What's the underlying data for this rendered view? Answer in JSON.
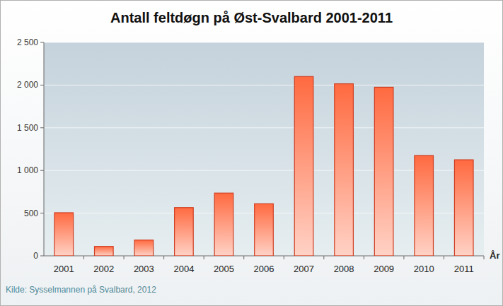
{
  "chart_data": {
    "type": "bar",
    "title": "Antall feltdøgn på Øst-Svalbard 2001-2011",
    "x_label": "År",
    "source": "Kilde: Sysselmannen på Svalbard, 2012",
    "categories": [
      "2001",
      "2002",
      "2003",
      "2004",
      "2005",
      "2006",
      "2007",
      "2008",
      "2009",
      "2010",
      "2011"
    ],
    "values": [
      505,
      110,
      185,
      565,
      735,
      610,
      2100,
      2015,
      1975,
      1175,
      1125
    ],
    "color": "#ff6a40",
    "ylim": [
      0,
      2500
    ],
    "yticks": [
      0,
      500,
      {
        "value": 1000,
        "label": "1 000"
      },
      {
        "value": 1500,
        "label": "1 500"
      },
      {
        "value": 2000,
        "label": "2 000"
      },
      {
        "value": 2500,
        "label": "2 500"
      }
    ],
    "grid": true
  }
}
